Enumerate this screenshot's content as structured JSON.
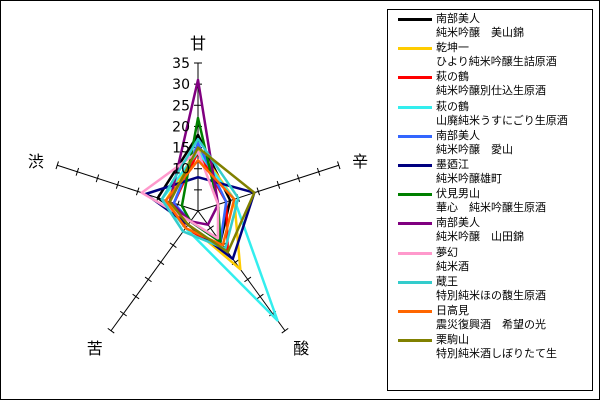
{
  "chart_data": {
    "type": "radar",
    "axes": [
      "甘",
      "辛",
      "酸",
      "苦",
      "渋"
    ],
    "rmax": 35,
    "ticks": [
      10,
      15,
      20,
      25,
      30,
      35
    ],
    "grid": false,
    "legend_position": "right",
    "series": [
      {
        "name": [
          "南部美人",
          "純米吟醸　美山錦"
        ],
        "color": "#000000",
        "values": [
          18,
          8,
          9,
          3,
          10
        ]
      },
      {
        "name": [
          "乾坤一",
          "ひより純米吟醸生詰原酒"
        ],
        "color": "#ffcc00",
        "values": [
          15,
          9,
          17,
          4,
          8
        ]
      },
      {
        "name": [
          "萩の鶴",
          "純米吟醸別仕込生原酒"
        ],
        "color": "#ff0000",
        "values": [
          14,
          7,
          12,
          5,
          6
        ]
      },
      {
        "name": [
          "萩の鶴",
          "山廃純米うすにごり生原酒"
        ],
        "color": "#33eeee",
        "values": [
          14,
          9,
          32,
          5,
          9
        ]
      },
      {
        "name": [
          "南部美人",
          "純米吟醸　愛山"
        ],
        "color": "#3366ff",
        "values": [
          16,
          7,
          9,
          3,
          6
        ]
      },
      {
        "name": [
          "墨廼江",
          "純米吟醸雄町"
        ],
        "color": "#000080",
        "values": [
          8,
          14,
          14,
          4,
          13
        ]
      },
      {
        "name": [
          "伏見男山",
          "華心　純米吟醸生原酒"
        ],
        "color": "#008000",
        "values": [
          22,
          5,
          9,
          3,
          4
        ]
      },
      {
        "name": [
          "南部美人",
          "純米吟醸　山田錦"
        ],
        "color": "#800080",
        "values": [
          31,
          5,
          4,
          3,
          7
        ]
      },
      {
        "name": [
          "夢幻",
          "純米酒"
        ],
        "color": "#ff99cc",
        "values": [
          14,
          5,
          8,
          3,
          14
        ]
      },
      {
        "name": [
          "蔵王",
          "特別純米ほの馥生原酒"
        ],
        "color": "#33cccc",
        "values": [
          17,
          10,
          11,
          6,
          9
        ]
      },
      {
        "name": [
          "日高見",
          "震災復興酒　希望の光"
        ],
        "color": "#ff6600",
        "values": [
          12,
          9,
          10,
          5,
          8
        ]
      },
      {
        "name": [
          "栗駒山",
          "特別純米酒しぼりたて生"
        ],
        "color": "#808000",
        "values": [
          15,
          14,
          12,
          4,
          7
        ]
      }
    ]
  }
}
